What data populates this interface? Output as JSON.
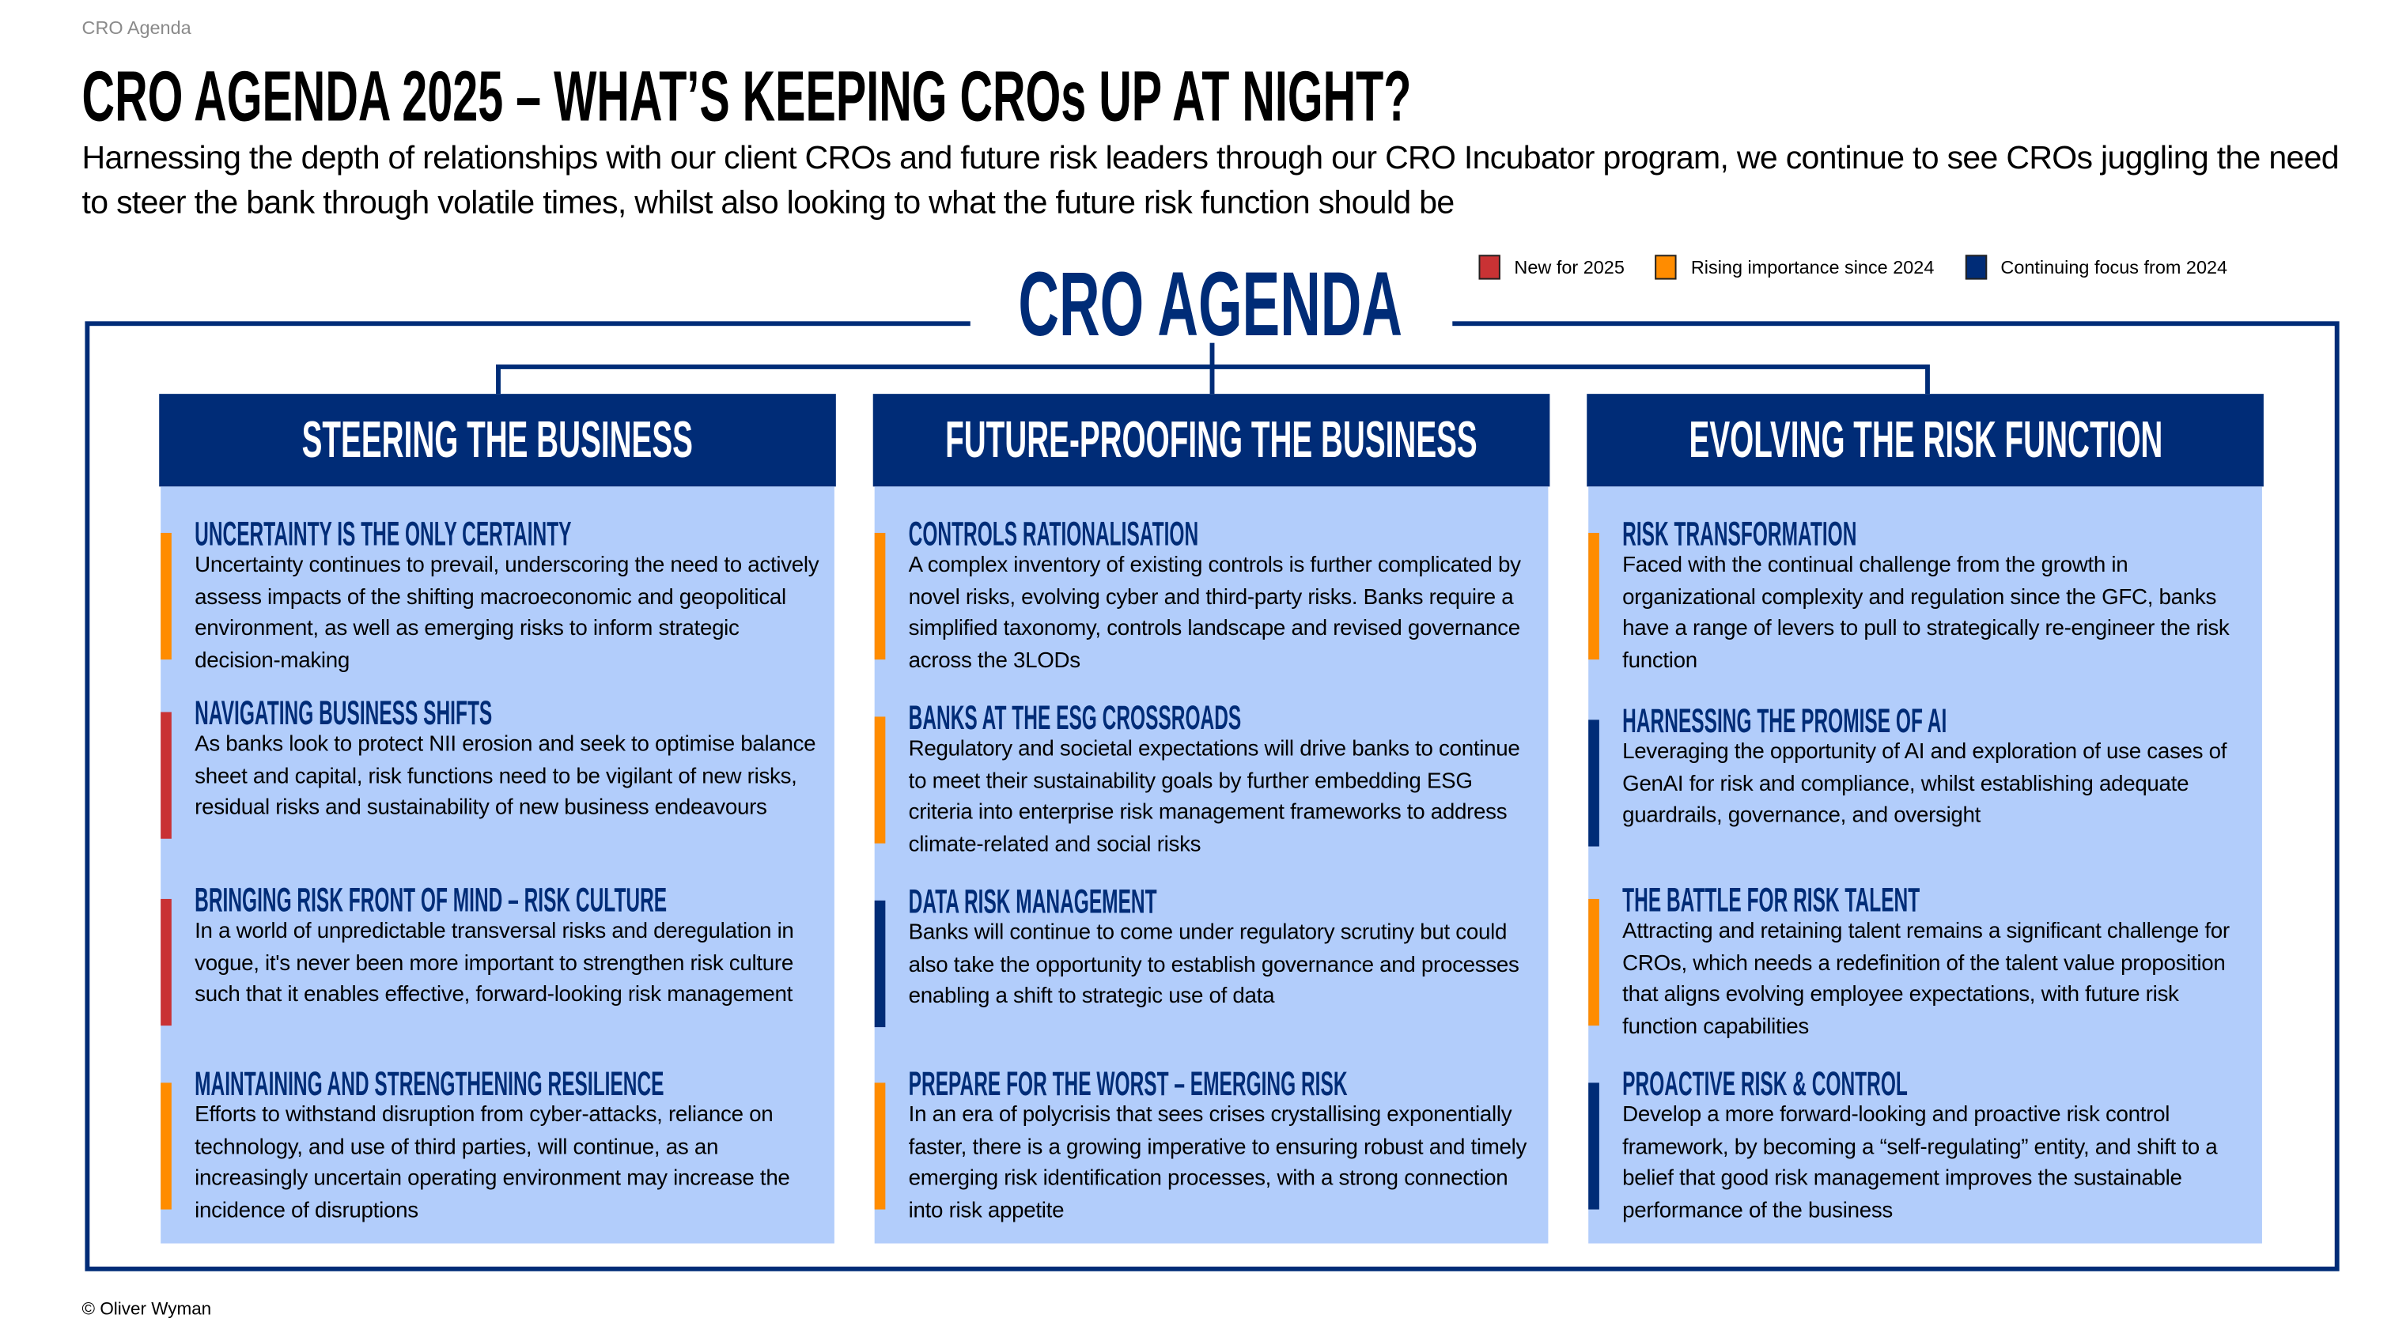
{
  "breadcrumb": "CRO Agenda",
  "title": "CRO AGENDA 2025 – WHAT’S KEEPING CROs UP AT NIGHT?",
  "subtitle": "Harnessing the depth of relationships with our client CROs and future risk leaders through our CRO Incubator program, we continue to see CROs juggling the need to steer the bank through volatile times, whilst also looking to what the future risk function should be",
  "legend": [
    {
      "label": "New for 2025",
      "color": "#C93234"
    },
    {
      "label": "Rising importance since 2024",
      "color": "#FF8C00"
    },
    {
      "label": "Continuing focus from 2024",
      "color": "#002C77"
    }
  ],
  "agenda_title": "CRO AGENDA",
  "columns": [
    {
      "title": "STEERING THE BUSINESS",
      "items": [
        {
          "title": "UNCERTAINTY IS THE ONLY CERTAINTY",
          "status": "Rising importance since 2024",
          "color": "#FF8C00",
          "text": "Uncertainty continues to prevail, underscoring the need to actively assess impacts of the shifting macroeconomic and geopolitical environment, as well as emerging risks to inform strategic decision-making"
        },
        {
          "title": "NAVIGATING BUSINESS SHIFTS",
          "status": "New for 2025",
          "color": "#C93234",
          "text": "As banks look to protect NII erosion and seek to optimise balance sheet and capital, risk functions need to be vigilant of new risks, residual risks and sustainability of new business endeavours"
        },
        {
          "title": "BRINGING RISK FRONT OF MIND – RISK CULTURE",
          "status": "New for 2025",
          "color": "#C93234",
          "text": "In a world of unpredictable transversal risks and deregulation in vogue, it's never been more important to strengthen risk culture such that it enables effective, forward-looking risk management"
        },
        {
          "title": "MAINTAINING AND STRENGTHENING RESILIENCE",
          "status": "Rising importance since 2024",
          "color": "#FF8C00",
          "text": "Efforts to withstand disruption from cyber-attacks, reliance on technology, and use of third parties, will continue, as an increasingly uncertain operating environment may increase the incidence of disruptions"
        }
      ]
    },
    {
      "title": "FUTURE-PROOFING THE BUSINESS",
      "items": [
        {
          "title": "CONTROLS RATIONALISATION",
          "status": "Rising importance since 2024",
          "color": "#FF8C00",
          "text": "A complex inventory of existing controls is further complicated by novel risks, evolving cyber and third-party risks. Banks require a simplified taxonomy, controls landscape and revised governance across the 3LODs"
        },
        {
          "title": "BANKS AT THE ESG CROSSROADS",
          "status": "Rising importance since 2024",
          "color": "#FF8C00",
          "text": "Regulatory and societal expectations will drive banks to continue to meet their sustainability goals by further embedding ESG criteria into enterprise risk management frameworks to address climate-related and social risks"
        },
        {
          "title": "DATA RISK MANAGEMENT",
          "status": "Continuing focus from 2024",
          "color": "#002C77",
          "text": "Banks will continue to come under regulatory scrutiny but could also take the opportunity to establish governance and processes enabling a shift to strategic use of data"
        },
        {
          "title": "PREPARE FOR THE WORST – EMERGING RISK",
          "status": "Rising importance since 2024",
          "color": "#FF8C00",
          "text": "In an era of polycrisis that sees crises crystallising exponentially faster, there is a growing imperative to ensuring robust and timely emerging risk identification processes, with a strong connection into risk appetite"
        }
      ]
    },
    {
      "title": "EVOLVING THE RISK FUNCTION",
      "items": [
        {
          "title": "RISK TRANSFORMATION",
          "status": "Rising importance since 2024",
          "color": "#FF8C00",
          "text": "Faced with the continual challenge from the growth in organizational complexity and regulation since the GFC, banks have a range of levers to pull to strategically re-engineer the risk function"
        },
        {
          "title": "HARNESSING THE PROMISE OF AI",
          "status": "Continuing focus from 2024",
          "color": "#002C77",
          "text": "Leveraging the opportunity of AI and exploration of use cases of GenAI for risk and compliance, whilst establishing adequate guardrails, governance, and oversight"
        },
        {
          "title": "THE BATTLE FOR RISK TALENT",
          "status": "Rising importance since 2024",
          "color": "#FF8C00",
          "text": "Attracting and retaining talent remains a significant challenge for CROs, which needs a redefinition of the talent value proposition that aligns evolving employee expectations, with future risk function capabilities"
        },
        {
          "title": "PROACTIVE RISK & CONTROL",
          "status": "Continuing focus from 2024",
          "color": "#002C77",
          "text": "Develop a more forward-looking and proactive risk control framework, by becoming a “self-regulating” entity, and shift to a belief that good risk management improves the sustainable performance of the business"
        }
      ]
    }
  ],
  "footer": "© Oliver Wyman"
}
